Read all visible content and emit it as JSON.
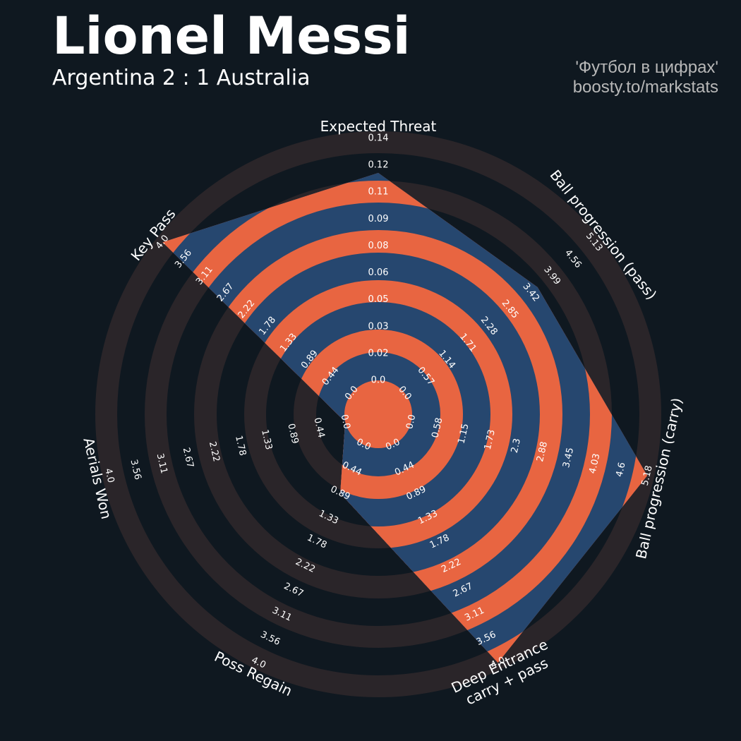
{
  "header": {
    "title": "Lionel Messi",
    "subtitle": "Argentina 2 : 1 Australia",
    "credit_line1": "'Футбол в цифрах'",
    "credit_line2": "boosty.to/markstats"
  },
  "colors": {
    "background": "#0f1820",
    "ring_dark": "#2a2529",
    "ring_light": "#0f1820",
    "player_fill": "#26476f",
    "player_ring": "#e86541",
    "text": "#ffffff",
    "credit": "#b8b8b8"
  },
  "chart_data": {
    "type": "radar",
    "params": [
      [
        "Expected Threat"
      ],
      [
        "Ball progression (pass)"
      ],
      [
        "Ball progression (carry)"
      ],
      [
        "Deep Entrance",
        "carry + pass"
      ],
      [
        "Poss Regain"
      ],
      [
        "Aerials Won"
      ],
      [
        "Key Pass"
      ]
    ],
    "ranges": [
      [
        0.0,
        0.14
      ],
      [
        0.0,
        5.13
      ],
      [
        0.0,
        5.18
      ],
      [
        0.0,
        4.0
      ],
      [
        0.0,
        4.0
      ],
      [
        0.0,
        4.0
      ],
      [
        0.0,
        4.0
      ]
    ],
    "tick_labels": [
      [
        "0.0",
        "0.02",
        "0.03",
        "0.05",
        "0.06",
        "0.08",
        "0.09",
        "0.11",
        "0.12",
        "0.14"
      ],
      [
        "0.0",
        "0.57",
        "1.14",
        "1.71",
        "2.28",
        "2.85",
        "3.42",
        "3.99",
        "4.56",
        "5.13"
      ],
      [
        "0.0",
        "0.58",
        "1.15",
        "1.73",
        "2.3",
        "2.88",
        "3.45",
        "4.03",
        "4.6",
        "5.18"
      ],
      [
        "0.0",
        "0.44",
        "0.89",
        "1.33",
        "1.78",
        "2.22",
        "2.67",
        "3.11",
        "3.56",
        "4.0"
      ],
      [
        "0.0",
        "0.44",
        "0.89",
        "1.33",
        "1.78",
        "2.22",
        "2.67",
        "3.11",
        "3.56",
        "4.0"
      ],
      [
        "0.0",
        "0.44",
        "0.89",
        "1.33",
        "1.78",
        "2.22",
        "2.67",
        "3.11",
        "3.56",
        "4.0"
      ],
      [
        "0.0",
        "0.44",
        "0.89",
        "1.33",
        "1.78",
        "2.22",
        "2.67",
        "3.11",
        "3.56",
        "4.0"
      ]
    ],
    "series": [
      {
        "values": [
          0.12,
          3.6,
          5.18,
          4.0,
          0.89,
          0.0,
          4.0
        ]
      }
    ]
  }
}
